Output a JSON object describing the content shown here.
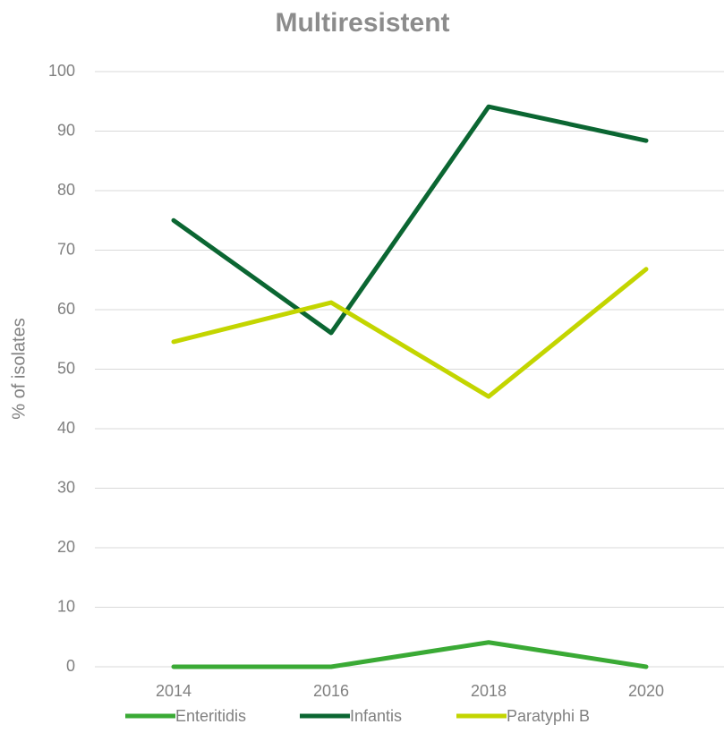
{
  "chart_data": {
    "type": "line",
    "title": "Multiresistent",
    "y_label": "% of isolates",
    "categories": [
      "2014",
      "2016",
      "2018",
      "2020"
    ],
    "series": [
      {
        "name": "Enteritidis",
        "color": "#3aaa35",
        "values": [
          0,
          0,
          4.1,
          0
        ]
      },
      {
        "name": "Infantis",
        "color": "#0b6632",
        "values": [
          75.0,
          56.1,
          94.1,
          88.4
        ]
      },
      {
        "name": "Paratyphi B",
        "color": "#c3d500",
        "values": [
          54.6,
          61.2,
          45.4,
          66.8
        ]
      }
    ],
    "ylim": [
      0,
      100
    ],
    "yticks": [
      0,
      10,
      20,
      30,
      40,
      50,
      60,
      70,
      80,
      90,
      100
    ],
    "grid": true,
    "legend": "bottom"
  }
}
